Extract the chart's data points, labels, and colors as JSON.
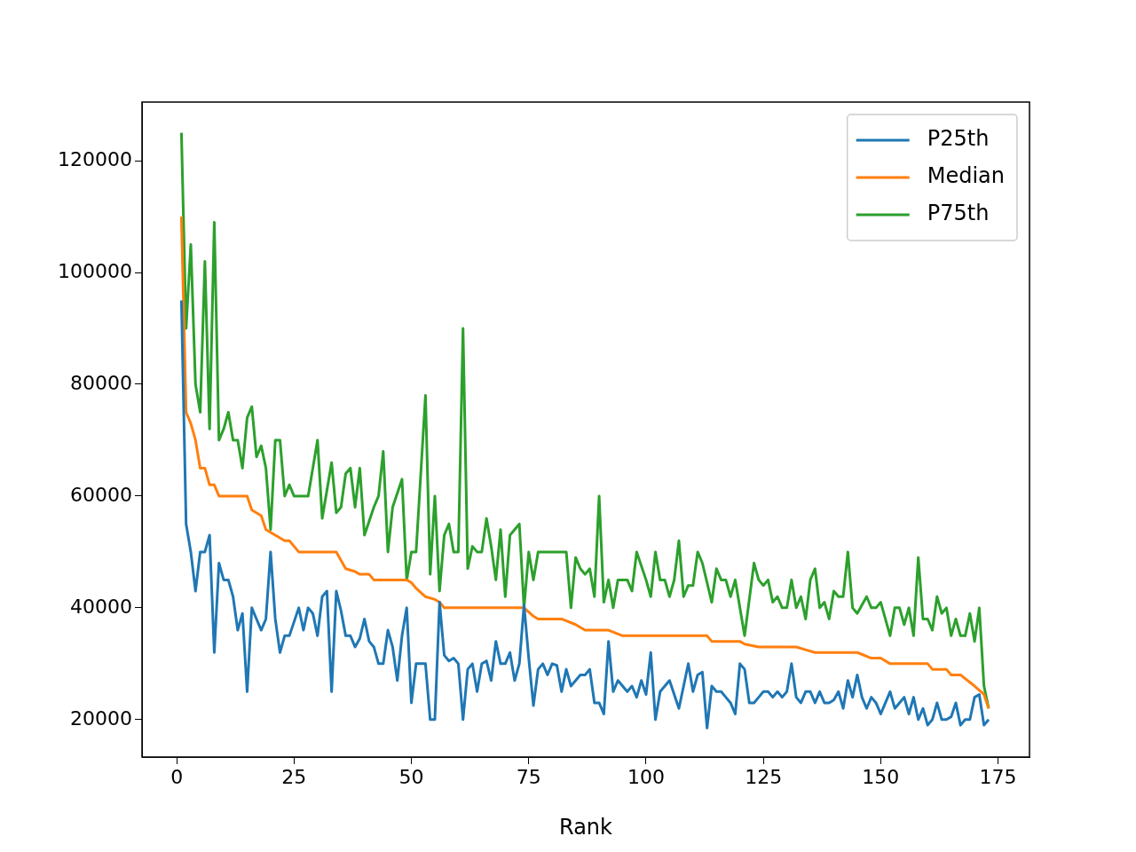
{
  "chart_data": {
    "type": "line",
    "xlabel": "Rank",
    "xlim": [
      -7.4,
      181.7
    ],
    "xticks": [
      0,
      25,
      50,
      75,
      100,
      125,
      150,
      175
    ],
    "ylim": [
      13300,
      130500
    ],
    "yticks": [
      20000,
      40000,
      60000,
      80000,
      100000,
      120000
    ],
    "legend": "top right",
    "marker": "none",
    "line_style": "solid",
    "series": [
      {
        "name": "P25th",
        "color": "#1f77b4",
        "x": [
          1,
          2,
          3,
          4,
          5,
          6,
          7,
          8,
          9,
          10,
          11,
          12,
          13,
          14,
          15,
          16,
          17,
          18,
          19,
          20,
          21,
          22,
          23,
          24,
          25,
          26,
          27,
          28,
          29,
          30,
          31,
          32,
          33,
          34,
          35,
          36,
          37,
          38,
          39,
          40,
          41,
          42,
          43,
          44,
          45,
          46,
          47,
          48,
          49,
          50,
          51,
          53,
          54,
          55,
          56,
          57,
          58,
          59,
          60,
          61,
          62,
          63,
          64,
          65,
          66,
          67,
          68,
          69,
          70,
          71,
          72,
          73,
          74,
          75,
          76,
          77,
          78,
          79,
          80,
          81,
          82,
          83,
          84,
          85,
          86,
          87,
          88,
          89,
          90,
          91,
          92,
          93,
          94,
          95,
          96,
          97,
          98,
          99,
          100,
          101,
          102,
          103,
          105,
          107,
          109,
          110,
          111,
          112,
          113,
          114,
          115,
          116,
          117,
          118,
          119,
          120,
          121,
          122,
          123,
          124,
          125,
          126,
          127,
          128,
          129,
          130,
          131,
          132,
          133,
          134,
          135,
          136,
          137,
          138,
          139,
          140,
          141,
          142,
          143,
          144,
          145,
          146,
          147,
          148,
          149,
          150,
          151,
          152,
          153,
          154,
          155,
          156,
          157,
          158,
          159,
          160,
          161,
          162,
          163,
          164,
          165,
          166,
          167,
          168,
          169,
          170,
          171,
          172,
          173
        ],
        "values": [
          95000,
          55000,
          50000,
          43000,
          50000,
          50000,
          53000,
          32000,
          48000,
          45000,
          45000,
          42000,
          36000,
          39000,
          25000,
          40000,
          38000,
          36000,
          38000,
          50000,
          38000,
          32000,
          35000,
          35000,
          37500,
          40000,
          36000,
          40000,
          39000,
          35000,
          42000,
          43000,
          25000,
          43000,
          39500,
          35000,
          35000,
          33000,
          34500,
          38000,
          34000,
          33000,
          30000,
          30000,
          36000,
          33000,
          27000,
          35000,
          40000,
          23000,
          30000,
          30000,
          20000,
          20000,
          41000,
          31500,
          30500,
          31000,
          30000,
          20000,
          29000,
          30000,
          25000,
          30000,
          30500,
          27000,
          34000,
          30000,
          30000,
          32000,
          27000,
          30000,
          40500,
          31000,
          22500,
          29000,
          30000,
          28000,
          30000,
          29700,
          25000,
          29000,
          26000,
          27000,
          28000,
          28000,
          29000,
          23000,
          23000,
          21000,
          34000,
          25000,
          27000,
          26000,
          25000,
          26000,
          24000,
          27000,
          24500,
          32000,
          20000,
          25000,
          27000,
          22000,
          30000,
          25000,
          28000,
          28500,
          18500,
          26000,
          25000,
          25000,
          24000,
          23000,
          21000,
          30000,
          29000,
          23000,
          23000,
          24000,
          25000,
          25000,
          24000,
          25000,
          24000,
          25000,
          30000,
          24000,
          23000,
          25000,
          25000,
          23000,
          25000,
          23000,
          23000,
          23500,
          25000,
          22000,
          27000,
          24000,
          28000,
          24000,
          22000,
          24000,
          23000,
          21000,
          23000,
          25000,
          22000,
          23000,
          24000,
          21000,
          24000,
          20000,
          22000,
          19000,
          20000,
          23000,
          20000,
          20000,
          20500,
          23000,
          19000,
          20000,
          20000,
          24000,
          24500,
          19000,
          20000
        ]
      },
      {
        "name": "Median",
        "color": "#ff7f0e",
        "x": [
          1,
          2,
          3,
          4,
          5,
          6,
          7,
          8,
          9,
          15,
          16,
          18,
          19,
          21,
          23,
          24,
          26,
          34,
          36,
          38,
          39,
          41,
          42,
          49,
          50,
          51,
          53,
          55,
          56,
          57,
          74,
          76,
          77,
          82,
          85,
          87,
          92,
          95,
          113,
          114,
          120,
          121,
          124,
          132,
          134,
          136,
          145,
          148,
          150,
          152,
          160,
          161,
          164,
          165,
          167,
          170,
          172,
          173
        ],
        "values": [
          110000,
          75000,
          73000,
          70000,
          65000,
          65000,
          62000,
          62000,
          60000,
          60000,
          57500,
          56500,
          54000,
          53000,
          52000,
          52000,
          50000,
          50000,
          47000,
          46500,
          46000,
          46000,
          45000,
          45000,
          44500,
          43500,
          42000,
          41500,
          41000,
          40000,
          40000,
          38500,
          38000,
          38000,
          37000,
          36000,
          36000,
          35000,
          35000,
          34000,
          34000,
          33500,
          33000,
          33000,
          32500,
          32000,
          32000,
          31000,
          31000,
          30000,
          30000,
          29000,
          29000,
          28000,
          28000,
          26000,
          24500,
          22000
        ]
      },
      {
        "name": "P75th",
        "color": "#2ca02c",
        "x": [
          1,
          2,
          3,
          4,
          5,
          6,
          7,
          8,
          9,
          10,
          11,
          12,
          13,
          14,
          15,
          16,
          17,
          18,
          19,
          20,
          21,
          22,
          23,
          24,
          25,
          28,
          30,
          31,
          33,
          34,
          35,
          36,
          37,
          38,
          39,
          40,
          42,
          43,
          44,
          45,
          46,
          48,
          49,
          50,
          51,
          53,
          54,
          55,
          56,
          57,
          58,
          59,
          60,
          61,
          62,
          63,
          64,
          65,
          66,
          67,
          68,
          69,
          70,
          71,
          72,
          73,
          74,
          75,
          76,
          77,
          83,
          84,
          85,
          86,
          87,
          88,
          89,
          90,
          91,
          92,
          93,
          94,
          96,
          97,
          98,
          100,
          101,
          102,
          103,
          104,
          105,
          106,
          107,
          108,
          109,
          110,
          111,
          112,
          114,
          115,
          116,
          117,
          118,
          119,
          121,
          123,
          124,
          125,
          126,
          127,
          128,
          129,
          130,
          131,
          132,
          133,
          134,
          135,
          136,
          137,
          138,
          139,
          140,
          141,
          142,
          143,
          144,
          145,
          147,
          148,
          149,
          150,
          152,
          153,
          154,
          155,
          156,
          157,
          158,
          159,
          160,
          161,
          162,
          163,
          164,
          165,
          166,
          167,
          168,
          169,
          170,
          171,
          172,
          173
        ],
        "values": [
          125000,
          90000,
          105000,
          80000,
          75000,
          102000,
          72000,
          109000,
          70000,
          72000,
          75000,
          70000,
          70000,
          65000,
          74000,
          76000,
          67000,
          69000,
          65000,
          54000,
          70000,
          70000,
          60000,
          62000,
          60000,
          60000,
          70000,
          56000,
          66000,
          57000,
          58000,
          64000,
          65000,
          58000,
          65000,
          53000,
          58000,
          60000,
          68000,
          50000,
          58000,
          63000,
          45000,
          50000,
          50000,
          78000,
          46000,
          60000,
          43000,
          53000,
          55000,
          50000,
          50000,
          90000,
          47000,
          51000,
          50000,
          50000,
          56000,
          51000,
          45000,
          54000,
          42000,
          53000,
          54000,
          55000,
          40000,
          50000,
          45000,
          50000,
          50000,
          40000,
          49000,
          47000,
          46000,
          47000,
          42000,
          60000,
          41000,
          45000,
          40000,
          45000,
          45000,
          43000,
          50000,
          45000,
          42000,
          50000,
          45000,
          45000,
          42000,
          45000,
          52000,
          42000,
          44000,
          44000,
          50000,
          48000,
          41000,
          47000,
          45000,
          45000,
          42000,
          45000,
          35000,
          48000,
          45000,
          44000,
          45000,
          41000,
          42000,
          40000,
          40000,
          45000,
          40000,
          42000,
          38000,
          45000,
          47000,
          40000,
          41000,
          38000,
          43000,
          42000,
          42000,
          50000,
          40000,
          39000,
          42000,
          40000,
          40000,
          41000,
          35000,
          40000,
          40000,
          37000,
          40000,
          35000,
          49000,
          38000,
          38000,
          36000,
          42000,
          39000,
          40000,
          35000,
          38000,
          35000,
          35000,
          39000,
          34000,
          40000,
          26000,
          22000
        ]
      }
    ]
  }
}
